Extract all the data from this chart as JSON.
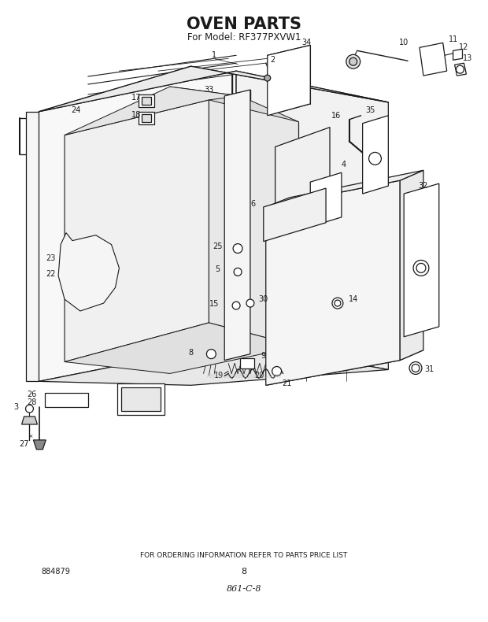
{
  "title": "OVEN PARTS",
  "subtitle": "For Model: RF377PXVW1",
  "footer_text": "FOR ORDERING INFORMATION REFER TO PARTS PRICE LIST",
  "bottom_left": "884879",
  "bottom_center": "8",
  "bottom_center2": "861-C-8",
  "bg_color": "#ffffff",
  "line_color": "#1a1a1a",
  "title_fontsize": 15,
  "subtitle_fontsize": 8.5,
  "footer_fontsize": 6.5,
  "fig_width": 6.2,
  "fig_height": 7.9,
  "dpi": 100
}
